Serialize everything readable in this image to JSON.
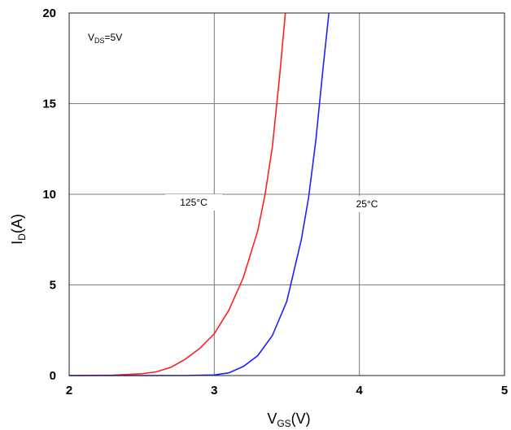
{
  "chart_data": {
    "type": "line",
    "title": "",
    "xlabel": {
      "main": "V",
      "sub": "GS",
      "unit": "(V)"
    },
    "ylabel": {
      "main": "I",
      "sub": "D",
      "unit": "(A)"
    },
    "xlim": [
      2,
      5
    ],
    "ylim": [
      0,
      20
    ],
    "x_ticks": [
      "2",
      "3",
      "4",
      "5"
    ],
    "y_ticks": [
      "0",
      "5",
      "10",
      "15",
      "20"
    ],
    "grid": true,
    "condition": {
      "main": "V",
      "sub": "DS",
      "rest": "=5V"
    },
    "series": [
      {
        "name": "125°C",
        "color": "#ff2020",
        "points": [
          [
            2.0,
            0.0
          ],
          [
            2.3,
            0.02
          ],
          [
            2.5,
            0.1
          ],
          [
            2.6,
            0.2
          ],
          [
            2.7,
            0.45
          ],
          [
            2.8,
            0.9
          ],
          [
            2.9,
            1.5
          ],
          [
            3.0,
            2.3
          ],
          [
            3.1,
            3.6
          ],
          [
            3.2,
            5.4
          ],
          [
            3.3,
            8.0
          ],
          [
            3.35,
            10.0
          ],
          [
            3.4,
            12.6
          ],
          [
            3.45,
            16.5
          ],
          [
            3.49,
            20.0
          ]
        ]
      },
      {
        "name": "25°C",
        "color": "#2020ff",
        "points": [
          [
            2.0,
            0.0
          ],
          [
            2.8,
            0.0
          ],
          [
            3.0,
            0.03
          ],
          [
            3.1,
            0.15
          ],
          [
            3.2,
            0.5
          ],
          [
            3.3,
            1.1
          ],
          [
            3.4,
            2.2
          ],
          [
            3.5,
            4.1
          ],
          [
            3.6,
            7.5
          ],
          [
            3.65,
            9.8
          ],
          [
            3.7,
            13.0
          ],
          [
            3.75,
            17.0
          ],
          [
            3.79,
            20.0
          ]
        ]
      }
    ]
  }
}
